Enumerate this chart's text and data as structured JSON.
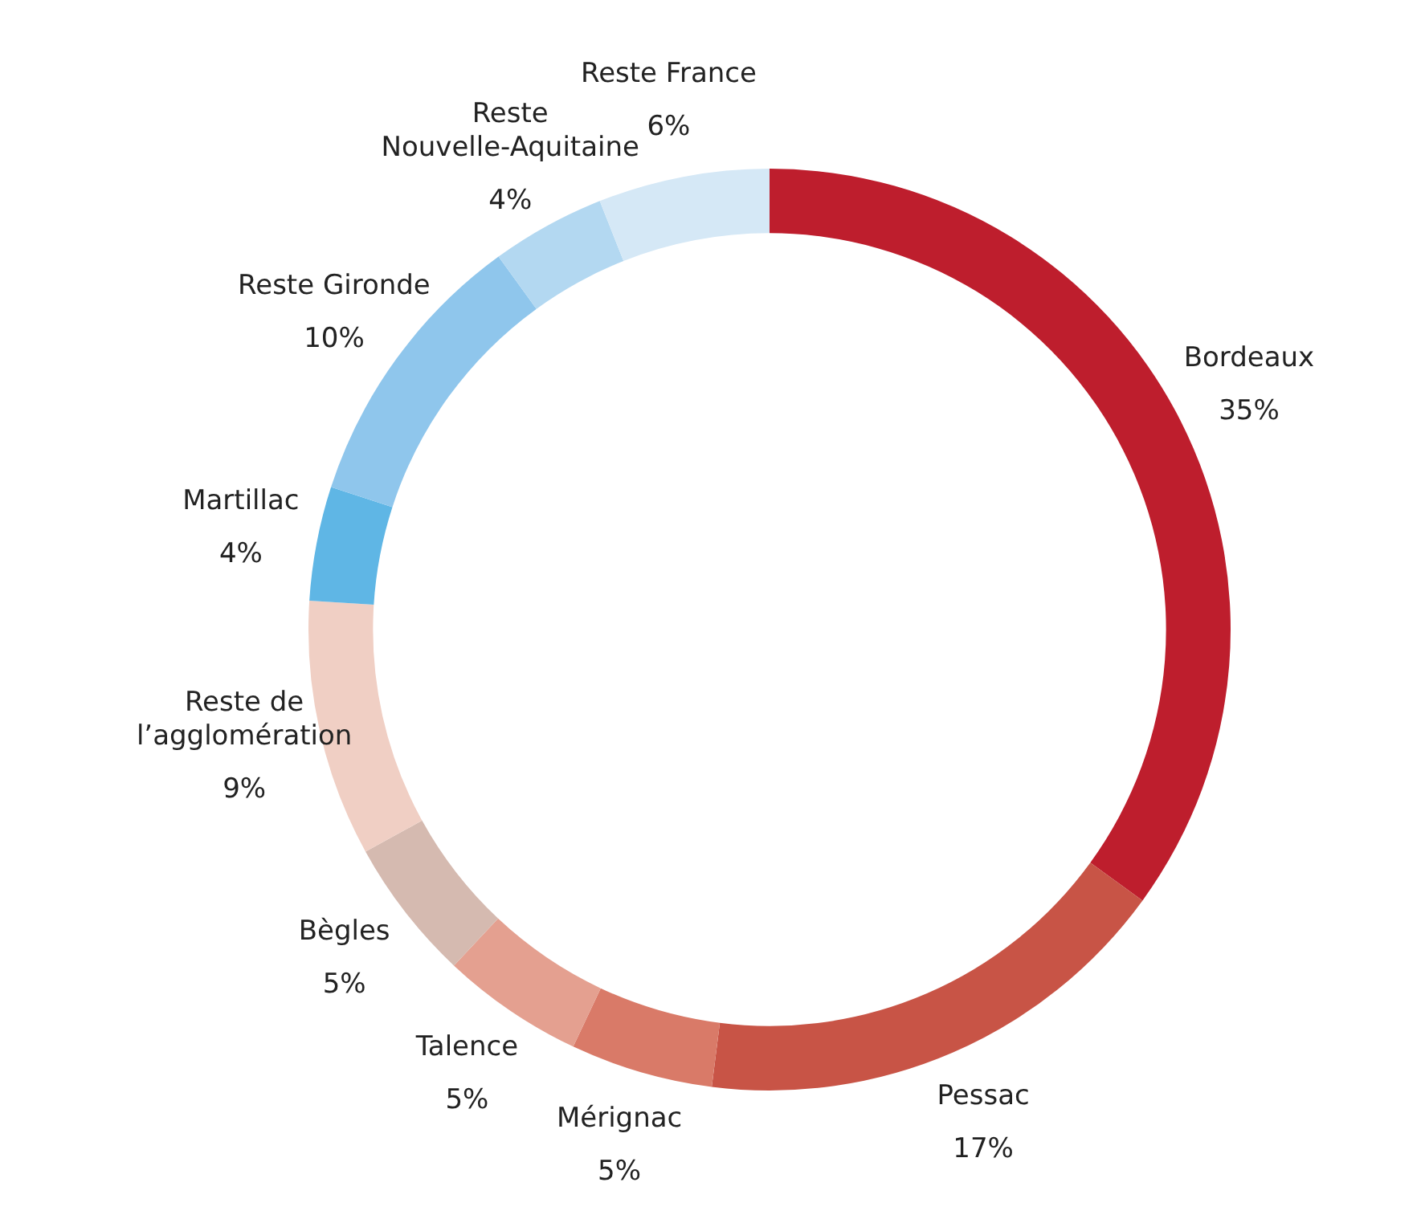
{
  "chart_data": {
    "type": "donut",
    "categories": [
      "Bordeaux",
      "Pessac",
      "Mérignac",
      "Talence",
      "Bègles",
      "Reste de\nl’agglomération",
      "Martillac",
      "Reste Gironde",
      "Reste\nNouvelle-Aquitaine",
      "Reste France"
    ],
    "values": [
      35,
      17,
      5,
      5,
      5,
      9,
      4,
      10,
      4,
      6
    ],
    "colors": [
      "#be1e2d",
      "#c85446",
      "#d97a68",
      "#e4a090",
      "#d5bab0",
      "#f0cfc4",
      "#5fb6e5",
      "#8fc6ec",
      "#b3d8f1",
      "#d5e8f6"
    ],
    "value_labels": [
      "35%",
      "17%",
      "5%",
      "5%",
      "5%",
      "9%",
      "4%",
      "10%",
      "4%",
      "6%"
    ],
    "legend": false
  }
}
